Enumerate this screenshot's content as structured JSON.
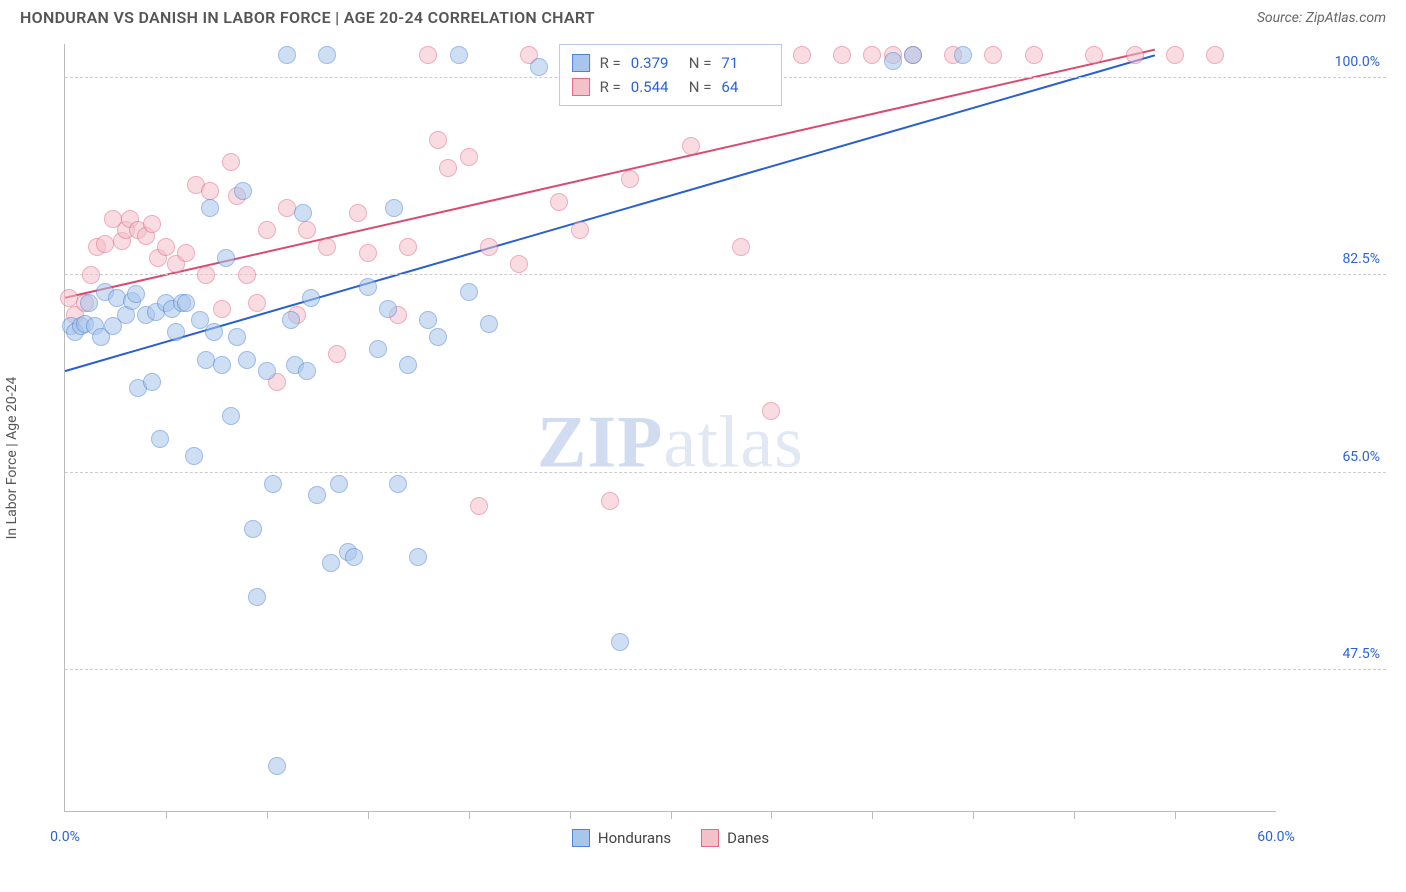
{
  "header": {
    "title": "HONDURAN VS DANISH IN LABOR FORCE | AGE 20-24 CORRELATION CHART",
    "source": "Source: ZipAtlas.com",
    "title_color": "#555555",
    "source_color": "#666666"
  },
  "watermark": {
    "zip": "ZIP",
    "atlas": "atlas"
  },
  "chart": {
    "type": "scatter-with-regression",
    "background": "#ffffff",
    "axis_color": "#bbbbbb",
    "grid_color": "#cccccc",
    "ylabel": "In Labor Force | Age 20-24",
    "xlim": [
      0,
      60
    ],
    "ylim": [
      35,
      103
    ],
    "xtick_step": 5,
    "xlabels": [
      {
        "x": 0,
        "label": "0.0%",
        "color": "#2962d9"
      },
      {
        "x": 60,
        "label": "60.0%",
        "color": "#2962d9"
      }
    ],
    "ylabels": [
      {
        "y": 47.5,
        "label": "47.5%",
        "color": "#2962d9"
      },
      {
        "y": 65.0,
        "label": "65.0%",
        "color": "#2962d9"
      },
      {
        "y": 82.5,
        "label": "82.5%",
        "color": "#2962d9"
      },
      {
        "y": 100.0,
        "label": "100.0%",
        "color": "#2962d9"
      }
    ],
    "point_radius": 9,
    "point_opacity": 0.55,
    "series": [
      {
        "name": "Hondurans",
        "fill": "#a8c5eb",
        "stroke": "#4f83d6",
        "line_color": "#2a5fd0",
        "line_width": 2,
        "regression": {
          "x1": 0,
          "y1": 74.0,
          "x2": 54,
          "y2": 102.0
        },
        "R": "0.379",
        "N": "71",
        "points": [
          [
            0.3,
            78
          ],
          [
            0.5,
            77.5
          ],
          [
            0.8,
            78
          ],
          [
            1.0,
            78.2
          ],
          [
            1.2,
            80
          ],
          [
            1.5,
            78
          ],
          [
            1.8,
            77
          ],
          [
            2.0,
            81
          ],
          [
            2.4,
            78
          ],
          [
            2.6,
            80.5
          ],
          [
            3.0,
            79
          ],
          [
            3.3,
            80.2
          ],
          [
            3.5,
            80.8
          ],
          [
            3.6,
            72.5
          ],
          [
            4.0,
            79
          ],
          [
            4.3,
            73
          ],
          [
            4.5,
            79.2
          ],
          [
            4.7,
            68
          ],
          [
            5.0,
            80
          ],
          [
            5.3,
            79.5
          ],
          [
            5.5,
            77.5
          ],
          [
            5.8,
            80
          ],
          [
            6.0,
            80
          ],
          [
            6.4,
            66.5
          ],
          [
            6.7,
            78.5
          ],
          [
            7.0,
            75
          ],
          [
            7.2,
            88.5
          ],
          [
            7.4,
            77.5
          ],
          [
            7.8,
            74.5
          ],
          [
            8.0,
            84
          ],
          [
            8.2,
            70
          ],
          [
            8.5,
            77
          ],
          [
            8.8,
            90
          ],
          [
            9.0,
            75
          ],
          [
            9.3,
            60
          ],
          [
            9.5,
            54
          ],
          [
            10.0,
            74
          ],
          [
            10.3,
            64
          ],
          [
            10.5,
            39
          ],
          [
            11.0,
            102
          ],
          [
            11.2,
            78.5
          ],
          [
            11.4,
            74.5
          ],
          [
            11.8,
            88
          ],
          [
            12.0,
            74
          ],
          [
            12.2,
            80.5
          ],
          [
            12.5,
            63
          ],
          [
            13.0,
            102
          ],
          [
            13.2,
            57
          ],
          [
            13.6,
            64
          ],
          [
            14.0,
            58
          ],
          [
            14.3,
            57.5
          ],
          [
            15.0,
            81.5
          ],
          [
            15.5,
            76
          ],
          [
            16.0,
            79.5
          ],
          [
            16.3,
            88.5
          ],
          [
            16.5,
            64
          ],
          [
            17.0,
            74.5
          ],
          [
            17.5,
            57.5
          ],
          [
            18.0,
            78.5
          ],
          [
            18.5,
            77
          ],
          [
            19.5,
            102
          ],
          [
            20.0,
            81
          ],
          [
            21.0,
            78.2
          ],
          [
            23.5,
            101
          ],
          [
            25.0,
            99
          ],
          [
            26.5,
            102
          ],
          [
            27.5,
            50
          ],
          [
            28.5,
            102
          ],
          [
            41.0,
            101.5
          ],
          [
            42.0,
            102
          ],
          [
            44.5,
            102
          ]
        ]
      },
      {
        "name": "Danes",
        "fill": "#f4c0ca",
        "stroke": "#e06a86",
        "line_color": "#d94a70",
        "line_width": 2,
        "regression": {
          "x1": 0,
          "y1": 80.5,
          "x2": 54,
          "y2": 102.5
        },
        "R": "0.544",
        "N": "64",
        "points": [
          [
            0.2,
            80.5
          ],
          [
            0.5,
            79
          ],
          [
            1.0,
            80
          ],
          [
            1.3,
            82.5
          ],
          [
            1.6,
            85
          ],
          [
            2.0,
            85.3
          ],
          [
            2.4,
            87.5
          ],
          [
            2.8,
            85.5
          ],
          [
            3.0,
            86.5
          ],
          [
            3.2,
            87.5
          ],
          [
            3.6,
            86.5
          ],
          [
            4.0,
            86
          ],
          [
            4.3,
            87
          ],
          [
            4.6,
            84
          ],
          [
            5.0,
            85
          ],
          [
            5.5,
            83.5
          ],
          [
            6.0,
            84.5
          ],
          [
            6.5,
            90.5
          ],
          [
            7.0,
            82.5
          ],
          [
            7.2,
            90
          ],
          [
            7.8,
            79.5
          ],
          [
            8.2,
            92.5
          ],
          [
            8.5,
            89.5
          ],
          [
            9.0,
            82.5
          ],
          [
            9.5,
            80
          ],
          [
            10.0,
            86.5
          ],
          [
            10.5,
            73
          ],
          [
            11.0,
            88.5
          ],
          [
            11.5,
            79
          ],
          [
            12.0,
            86.5
          ],
          [
            13.0,
            85
          ],
          [
            13.5,
            75.5
          ],
          [
            14.5,
            88
          ],
          [
            15.0,
            84.5
          ],
          [
            16.5,
            79
          ],
          [
            17.0,
            85
          ],
          [
            18.0,
            102
          ],
          [
            18.5,
            94.5
          ],
          [
            19.0,
            92
          ],
          [
            20.0,
            93
          ],
          [
            20.5,
            62
          ],
          [
            21.0,
            85
          ],
          [
            22.5,
            83.5
          ],
          [
            23.0,
            102
          ],
          [
            24.5,
            89
          ],
          [
            25.5,
            86.5
          ],
          [
            27.0,
            62.5
          ],
          [
            28.0,
            91
          ],
          [
            29.5,
            102
          ],
          [
            31.0,
            94
          ],
          [
            33.5,
            85
          ],
          [
            35.0,
            70.5
          ],
          [
            36.5,
            102
          ],
          [
            38.5,
            102
          ],
          [
            40.0,
            102
          ],
          [
            41.0,
            102
          ],
          [
            42.0,
            102
          ],
          [
            44.0,
            102
          ],
          [
            46.0,
            102
          ],
          [
            48.0,
            102
          ],
          [
            51.0,
            102
          ],
          [
            53.0,
            102
          ],
          [
            55.0,
            102
          ],
          [
            57.0,
            102
          ]
        ]
      }
    ],
    "legend": {
      "items": [
        {
          "label": "Hondurans",
          "fill": "#a8c5eb",
          "stroke": "#4f83d6"
        },
        {
          "label": "Danes",
          "fill": "#f4c0ca",
          "stroke": "#e06a86"
        }
      ]
    }
  }
}
